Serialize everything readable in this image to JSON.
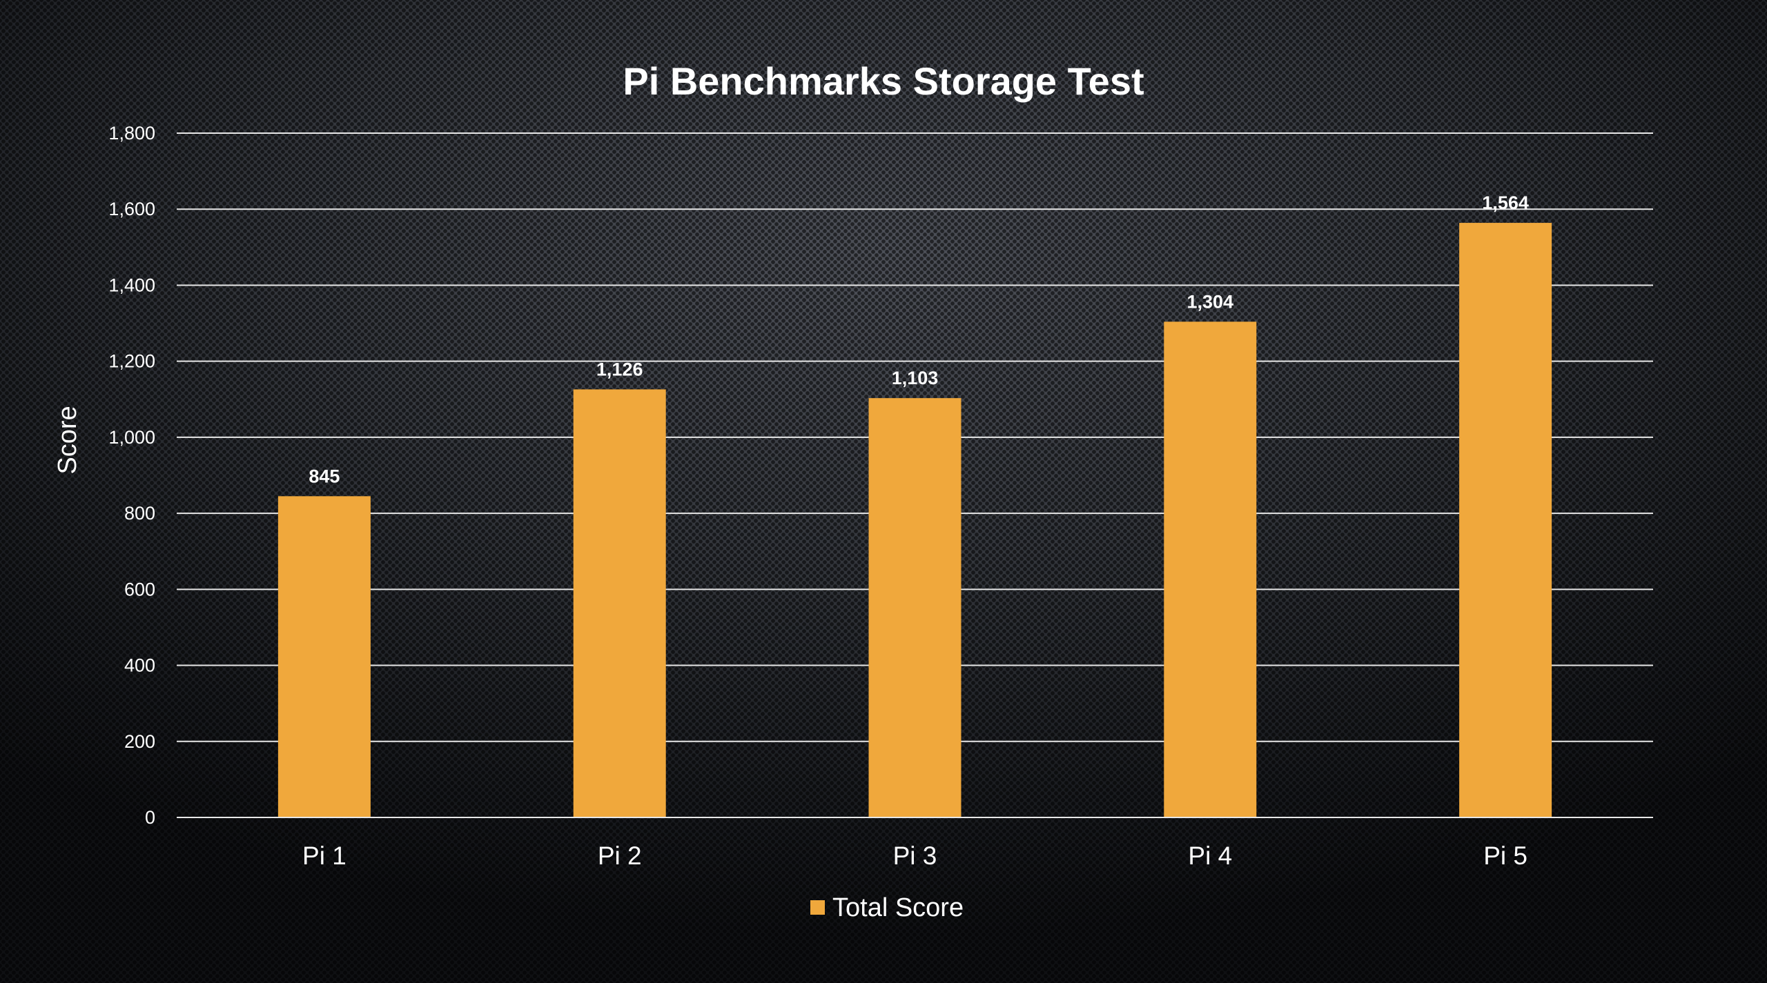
{
  "chart_data": {
    "type": "bar",
    "title": "Pi Benchmarks Storage Test",
    "xlabel": "",
    "ylabel": "Score",
    "categories": [
      "Pi 1",
      "Pi 2",
      "Pi 3",
      "Pi 4",
      "Pi 5"
    ],
    "series": [
      {
        "name": "Total Score",
        "values": [
          845,
          1126,
          1103,
          1304,
          1564
        ],
        "data_labels": [
          "845",
          "1,126",
          "1,103",
          "1,304",
          "1,564"
        ]
      }
    ],
    "ylim": [
      0,
      1800
    ],
    "yticks": [
      0,
      200,
      400,
      600,
      800,
      1000,
      1200,
      1400,
      1600,
      1800
    ],
    "ytick_labels": [
      "0",
      "200",
      "400",
      "600",
      "800",
      "1,000",
      "1,200",
      "1,400",
      "1,600",
      "1,800"
    ],
    "grid": true,
    "legend": "bottom",
    "colors": {
      "bar": "#F0A83C",
      "text": "#FFFFFF",
      "grid": "#E8E8E8"
    }
  }
}
